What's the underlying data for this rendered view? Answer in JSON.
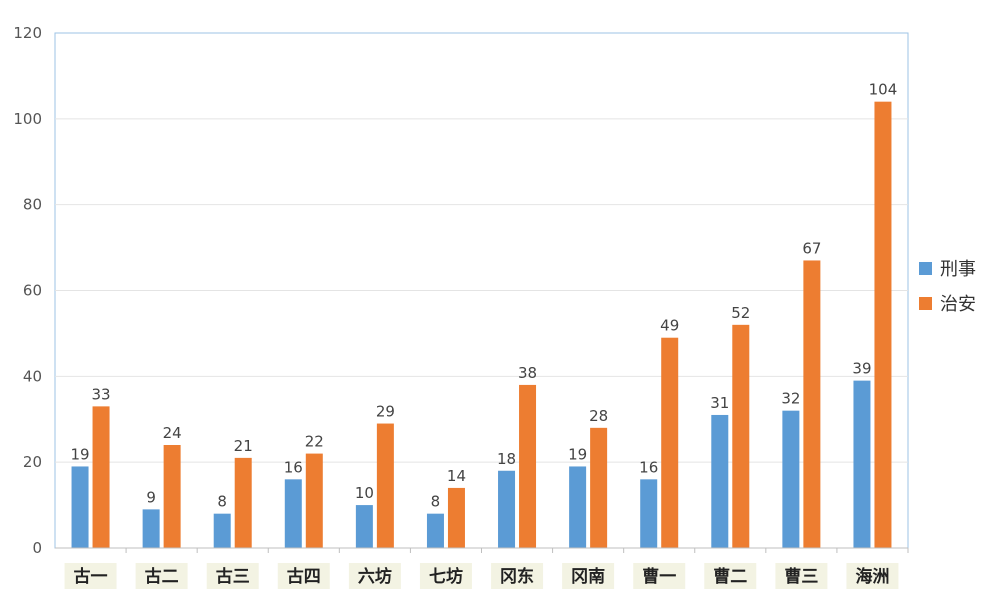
{
  "chart_data": {
    "type": "bar",
    "categories": [
      "古一",
      "古二",
      "古三",
      "古四",
      "六坊",
      "七坊",
      "冈东",
      "冈南",
      "曹一",
      "曹二",
      "曹三",
      "海洲"
    ],
    "series": [
      {
        "name": "刑事",
        "color": "#5b9bd5",
        "values": [
          19,
          9,
          8,
          16,
          10,
          8,
          18,
          19,
          16,
          31,
          32,
          39
        ]
      },
      {
        "name": "治安",
        "color": "#ed7d31",
        "values": [
          33,
          24,
          21,
          22,
          29,
          14,
          38,
          28,
          49,
          52,
          67,
          104
        ]
      }
    ],
    "ylim": [
      0,
      120
    ],
    "yticks": [
      0,
      20,
      40,
      60,
      80,
      100,
      120
    ],
    "grid": true,
    "legend": "right",
    "data_labels": true,
    "category_label_background": "#f3f3e3"
  }
}
